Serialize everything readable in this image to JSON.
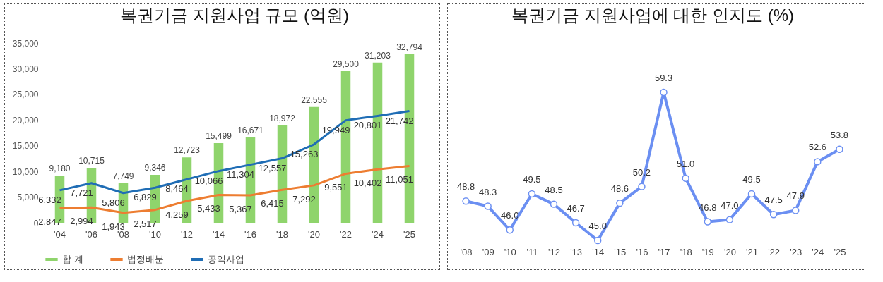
{
  "chart_data": [
    {
      "type": "bar",
      "title": "복권기금 지원사업 규모 (억원)",
      "categories": [
        "'04",
        "'06",
        "'08",
        "'10",
        "'12",
        "'14",
        "'16",
        "'18",
        "'20",
        "'22",
        "'24",
        "'25"
      ],
      "series": [
        {
          "name": "합 계",
          "type": "bar",
          "color": "#8fd46c",
          "values": [
            9180,
            10715,
            7749,
            9346,
            12723,
            15499,
            16671,
            18972,
            22555,
            29500,
            31203,
            32794
          ],
          "value_labels": [
            "9,180",
            "10,715",
            "7,749",
            "9,346",
            "12,723",
            "15,499",
            "16,671",
            "18,972",
            "22,555",
            "29,500",
            "31,203",
            "32,794"
          ]
        },
        {
          "name": "법정배분",
          "type": "line",
          "color": "#ed7d31",
          "values": [
            2847,
            2994,
            1943,
            2517,
            4259,
            5433,
            5367,
            6415,
            7292,
            9551,
            10402,
            11051
          ],
          "value_labels": [
            "2,847",
            "2,994",
            "1,943",
            "2,517",
            "4,259",
            "5,433",
            "5,367",
            "6,415",
            "7,292",
            "9,551",
            "10,402",
            "11,051"
          ]
        },
        {
          "name": "공익사업",
          "type": "line",
          "color": "#1f6db5",
          "values": [
            6332,
            7721,
            5806,
            6829,
            8464,
            10066,
            11304,
            12557,
            15263,
            19949,
            20801,
            21742
          ],
          "value_labels": [
            "6,332",
            "7,721",
            "5,806",
            "6,829",
            "8,464",
            "10,066",
            "11,304",
            "12,557",
            "15,263",
            "19,949",
            "20,801",
            "21,742"
          ]
        }
      ],
      "ylim": [
        0,
        35000
      ],
      "yticks": [
        0,
        {
          "value": 5000,
          "label": "5,000"
        },
        {
          "value": 10000,
          "label": "10,000"
        },
        {
          "value": 15000,
          "label": "15,000"
        },
        {
          "value": 20000,
          "label": "20,000"
        },
        {
          "value": 25000,
          "label": "25,000"
        },
        {
          "value": 30000,
          "label": "30,000"
        },
        {
          "value": 35000,
          "label": "35,000"
        }
      ],
      "legend": "bottom",
      "grid": false
    },
    {
      "type": "line",
      "title": "복권기금 지원사업에 대한 인지도 (%)",
      "categories": [
        "'08",
        "'09",
        "'10",
        "'11",
        "'12",
        "'13",
        "'14",
        "'15",
        "'16",
        "'17",
        "'18",
        "'19",
        "'20",
        "'21",
        "'22",
        "'23",
        "'24",
        "'25"
      ],
      "series": [
        {
          "color": "#6b8ff2",
          "values": [
            48.8,
            48.3,
            46.0,
            49.5,
            48.5,
            46.7,
            45.0,
            48.6,
            50.2,
            59.3,
            51.0,
            46.8,
            47.0,
            49.5,
            47.5,
            47.9,
            52.6,
            53.8
          ],
          "value_labels": [
            "48.8",
            "48.3",
            "46.0",
            "49.5",
            "48.5",
            "46.7",
            "45.0",
            "48.6",
            "50.2",
            "59.3",
            "51.0",
            "46.8",
            "47.0",
            "49.5",
            "47.5",
            "47.9",
            "52.6",
            "53.8"
          ]
        }
      ],
      "marker": "circle",
      "tick_labels": "x",
      "grid": false,
      "legend": false
    }
  ]
}
